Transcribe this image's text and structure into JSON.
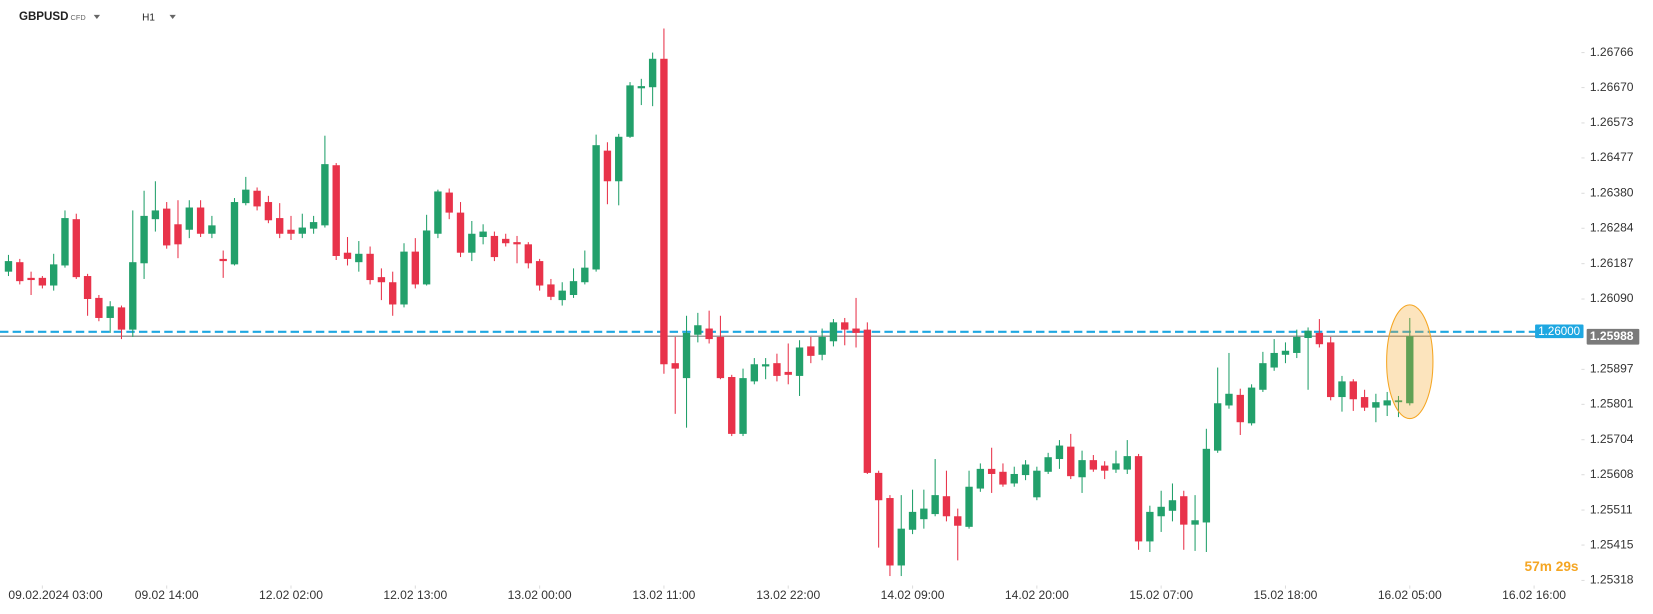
{
  "header": {
    "symbol": "GBPUSD",
    "instrument_type": "CFD",
    "timeframe": "H1"
  },
  "chart_data": {
    "type": "candlestick",
    "up_color": "#22a06b",
    "down_color": "#e8334a",
    "open": [
      1.26165,
      1.26191,
      1.26148,
      1.26148,
      1.26127,
      1.26182,
      1.26309,
      1.26153,
      1.26093,
      1.26038,
      1.26067,
      1.26006,
      1.26188,
      1.26309,
      1.26338,
      1.26295,
      1.2628,
      1.26341,
      1.26269,
      1.262,
      1.26185,
      1.26353,
      1.26387,
      1.26356,
      1.26312,
      1.2628,
      1.26269,
      1.26283,
      1.26292,
      1.26457,
      1.26217,
      1.26191,
      1.26214,
      1.2615,
      1.26136,
      1.26075,
      1.2622,
      1.2613,
      1.26269,
      1.26382,
      1.26327,
      1.26217,
      1.2626,
      1.26263,
      1.26255,
      1.26246,
      1.2624,
      1.26194,
      1.2613,
      1.26087,
      1.26101,
      1.26136,
      1.26171,
      1.26497,
      1.26413,
      1.26535,
      1.26668,
      1.26671,
      1.26749,
      1.25914,
      1.25873,
      1.25992,
      1.26009,
      1.25986,
      1.25876,
      1.2572,
      1.25864,
      1.25905,
      1.25914,
      1.2589,
      1.25879,
      1.2596,
      1.25937,
      1.25974,
      1.26026,
      1.26009,
      1.26006,
      1.25613,
      1.25544,
      1.25359,
      1.25457,
      1.25486,
      1.255,
      1.25549,
      1.25494,
      1.25465,
      1.2557,
      1.25624,
      1.25616,
      1.25584,
      1.25607,
      1.25546,
      1.25616,
      1.25651,
      1.25685,
      1.25601,
      1.25648,
      1.25633,
      1.25622,
      1.25622,
      1.25659,
      1.25425,
      1.25494,
      1.25509,
      1.25549,
      1.25471,
      1.25477,
      1.25674,
      1.25798,
      1.25827,
      1.25749,
      1.25841,
      1.25902,
      1.25937,
      1.25942,
      1.25983,
      1.25997,
      1.25971,
      1.25821,
      1.25864,
      1.25821,
      1.25792,
      1.25798,
      1.25807,
      1.25804
    ],
    "high": [
      1.26211,
      1.262,
      1.26165,
      1.26153,
      1.26214,
      1.26333,
      1.26324,
      1.26159,
      1.26101,
      1.26084,
      1.26072,
      1.26333,
      1.26387,
      1.26413,
      1.26356,
      1.26361,
      1.26361,
      1.26361,
      1.26318,
      1.26223,
      1.26367,
      1.26425,
      1.26396,
      1.26373,
      1.26353,
      1.26318,
      1.26324,
      1.26318,
      1.26538,
      1.26463,
      1.2626,
      1.26249,
      1.26234,
      1.26174,
      1.26165,
      1.26243,
      1.26257,
      1.26321,
      1.2639,
      1.26393,
      1.26356,
      1.26304,
      1.26295,
      1.26275,
      1.26269,
      1.26263,
      1.26246,
      1.262,
      1.26145,
      1.26136,
      1.26174,
      1.26223,
      1.26541,
      1.2652,
      1.26543,
      1.26685,
      1.26694,
      1.26766,
      1.26832,
      1.25986,
      1.26044,
      1.26052,
      1.26058,
      1.26044,
      1.25882,
      1.25899,
      1.25928,
      1.25928,
      1.2594,
      1.25968,
      1.25977,
      1.25986,
      1.26009,
      1.26035,
      1.26038,
      1.26093,
      1.26026,
      1.25619,
      1.25552,
      1.25552,
      1.25567,
      1.25567,
      1.25651,
      1.25619,
      1.25515,
      1.25619,
      1.25639,
      1.25682,
      1.25639,
      1.2563,
      1.25648,
      1.2563,
      1.25668,
      1.25703,
      1.2572,
      1.25674,
      1.25662,
      1.25645,
      1.25674,
      1.25703,
      1.25665,
      1.25523,
      1.25564,
      1.25584,
      1.25564,
      1.25552,
      1.25734,
      1.25902,
      1.25942,
      1.25844,
      1.25856,
      1.25945,
      1.2598,
      1.25971,
      1.26006,
      1.26012,
      1.26035,
      1.25986,
      1.25879,
      1.2587,
      1.25841,
      1.2583,
      1.25835,
      1.25824,
      1.26038
    ],
    "low": [
      1.26153,
      1.2613,
      1.26101,
      1.26119,
      1.26113,
      1.26176,
      1.26145,
      1.26044,
      1.26029,
      1.25997,
      1.2598,
      1.25986,
      1.26145,
      1.26275,
      1.26228,
      1.26202,
      1.26257,
      1.2626,
      1.26257,
      1.26148,
      1.26182,
      1.26347,
      1.26333,
      1.26298,
      1.26257,
      1.26252,
      1.26257,
      1.26269,
      1.26286,
      1.26197,
      1.26182,
      1.26165,
      1.2613,
      1.26087,
      1.26044,
      1.26067,
      1.26119,
      1.26127,
      1.26257,
      1.26309,
      1.26205,
      1.26194,
      1.2624,
      1.26194,
      1.26234,
      1.26188,
      1.26174,
      1.26113,
      1.26087,
      1.26072,
      1.26093,
      1.2613,
      1.26165,
      1.2635,
      1.26347,
      1.26532,
      1.26622,
      1.26619,
      1.25885,
      1.25775,
      1.25737,
      1.25971,
      1.25968,
      1.2587,
      1.25714,
      1.25714,
      1.25856,
      1.2587,
      1.25864,
      1.25856,
      1.25824,
      1.25914,
      1.25922,
      1.2596,
      1.25963,
      1.25957,
      1.2561,
      1.25408,
      1.2533,
      1.2533,
      1.25445,
      1.2546,
      1.25494,
      1.2548,
      1.25373,
      1.2546,
      1.25561,
      1.25558,
      1.25575,
      1.25575,
      1.25593,
      1.25538,
      1.2561,
      1.25624,
      1.25596,
      1.25558,
      1.25616,
      1.25596,
      1.25613,
      1.2561,
      1.25402,
      1.25396,
      1.25451,
      1.2548,
      1.25402,
      1.25399,
      1.25396,
      1.25668,
      1.25789,
      1.25717,
      1.25743,
      1.25835,
      1.25893,
      1.25914,
      1.25928,
      1.25841,
      1.25957,
      1.25812,
      1.25781,
      1.25783,
      1.25783,
      1.25752,
      1.25769,
      1.25766,
      1.25798
    ],
    "close": [
      1.26194,
      1.26139,
      1.26142,
      1.26127,
      1.26185,
      1.26312,
      1.2615,
      1.2609,
      1.26038,
      1.2607,
      1.26006,
      1.26191,
      1.26318,
      1.26333,
      1.26237,
      1.2624,
      1.26341,
      1.26269,
      1.26292,
      1.26194,
      1.26356,
      1.2639,
      1.26344,
      1.26306,
      1.26269,
      1.26269,
      1.26286,
      1.26301,
      1.2646,
      1.26208,
      1.262,
      1.26214,
      1.26142,
      1.26136,
      1.26075,
      1.2622,
      1.2613,
      1.26278,
      1.26385,
      1.26327,
      1.26217,
      1.26269,
      1.26275,
      1.26205,
      1.26243,
      1.2624,
      1.26188,
      1.26127,
      1.26096,
      1.26113,
      1.26139,
      1.26176,
      1.26512,
      1.26413,
      1.26535,
      1.26676,
      1.26674,
      1.26749,
      1.25911,
      1.25899,
      1.25997,
      1.26018,
      1.2598,
      1.25873,
      1.2572,
      1.25873,
      1.25911,
      1.25911,
      1.25879,
      1.25882,
      1.25957,
      1.25934,
      1.25986,
      1.26026,
      1.26006,
      1.25997,
      1.25613,
      1.25538,
      1.25359,
      1.2546,
      1.25506,
      1.25515,
      1.25552,
      1.25494,
      1.25468,
      1.25575,
      1.25624,
      1.2561,
      1.25581,
      1.2561,
      1.25636,
      1.25619,
      1.25656,
      1.25688,
      1.25604,
      1.25648,
      1.25622,
      1.25619,
      1.25639,
      1.25659,
      1.25425,
      1.25506,
      1.2552,
      1.25538,
      1.25471,
      1.25483,
      1.25679,
      1.25804,
      1.2583,
      1.25752,
      1.25847,
      1.25914,
      1.25942,
      1.25948,
      1.25986,
      1.26003,
      1.25966,
      1.25821,
      1.25864,
      1.25815,
      1.25792,
      1.25807,
      1.25812,
      1.25812,
      1.25988
    ],
    "xlim": [
      -0.75,
      139
    ],
    "xticks": [
      {
        "value": 3,
        "label": "09.02.2024 03:00"
      },
      {
        "value": 14,
        "label": "09.02 14:00"
      },
      {
        "value": 25,
        "label": "12.02 02:00"
      },
      {
        "value": 36,
        "label": "12.02 13:00"
      },
      {
        "value": 47,
        "label": "13.02 00:00"
      },
      {
        "value": 58,
        "label": "13.02 11:00"
      },
      {
        "value": 69,
        "label": "13.02 22:00"
      },
      {
        "value": 80,
        "label": "14.02 09:00"
      },
      {
        "value": 91,
        "label": "14.02 20:00"
      },
      {
        "value": 102,
        "label": "15.02 07:00"
      },
      {
        "value": 113,
        "label": "15.02 18:00"
      },
      {
        "value": 124,
        "label": "16.02 05:00"
      },
      {
        "value": 135,
        "label": "16.02 16:00"
      }
    ],
    "ylim": [
      1.25307,
      1.2691
    ],
    "yticks": [
      1.26766,
      {
        "value": 1.2667,
        "label": "1.26670"
      },
      1.26573,
      1.26477,
      {
        "value": 1.2638,
        "label": "1.26380"
      },
      1.26284,
      1.26187,
      {
        "value": 1.2609,
        "label": "1.26090"
      },
      1.25897,
      1.25801,
      1.25704,
      1.25608,
      1.25511,
      1.25415,
      1.25318
    ],
    "grid": false,
    "price_lines": [
      {
        "value": 1.26,
        "label": "1.26000",
        "color": "#1ea7e1",
        "style": "dashed"
      },
      {
        "value": 1.25988,
        "color": "#7a7a7a",
        "style": "solid"
      }
    ],
    "countdown": "57m 29s"
  }
}
